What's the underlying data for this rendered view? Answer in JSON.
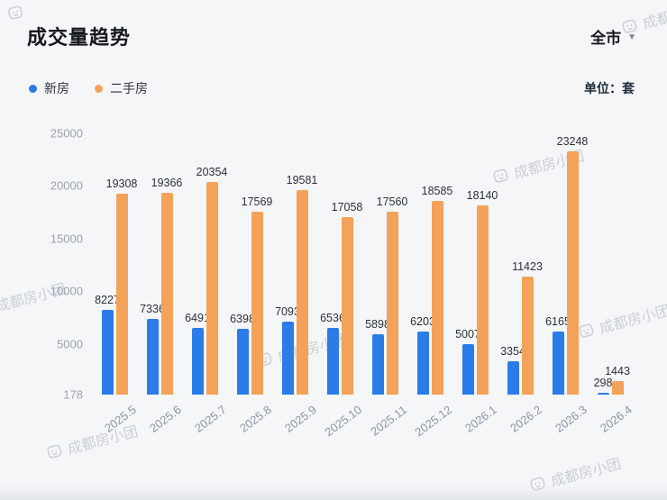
{
  "header": {
    "title": "成交量趋势",
    "filter": "全市",
    "filter_caret": "▼"
  },
  "legend": {
    "items": [
      {
        "label": "新房",
        "color": "#2b7ce9"
      },
      {
        "label": "二手房",
        "color": "#f4a259"
      }
    ],
    "unit_label": "单位：套"
  },
  "watermark": {
    "text": "成都房小团"
  },
  "chart_data": {
    "type": "bar",
    "title": "成交量趋势",
    "categories": [
      "2025.5",
      "2025.6",
      "2025.7",
      "2025.8",
      "2025.9",
      "2025.10",
      "2025.11",
      "2025.12",
      "2026.1",
      "2026.2",
      "2026.3",
      "2026.4"
    ],
    "series": [
      {
        "name": "新房",
        "color": "#2b7ce9",
        "values": [
          8227,
          7336,
          6491,
          6398,
          7093,
          6536,
          5898,
          6203,
          5007,
          3354,
          6165,
          298
        ]
      },
      {
        "name": "二手房",
        "color": "#f4a259",
        "values": [
          19308,
          19366,
          20354,
          17569,
          19581,
          17058,
          17560,
          18585,
          18140,
          11423,
          23248,
          1443
        ]
      }
    ],
    "y_ticks": [
      25000,
      20000,
      15000,
      10000,
      5000,
      178
    ],
    "ylim": [
      178,
      25000
    ],
    "xlabel": "",
    "ylabel": "",
    "unit": "套",
    "grid": false,
    "legend_position": "top-left",
    "value_labels": true
  }
}
